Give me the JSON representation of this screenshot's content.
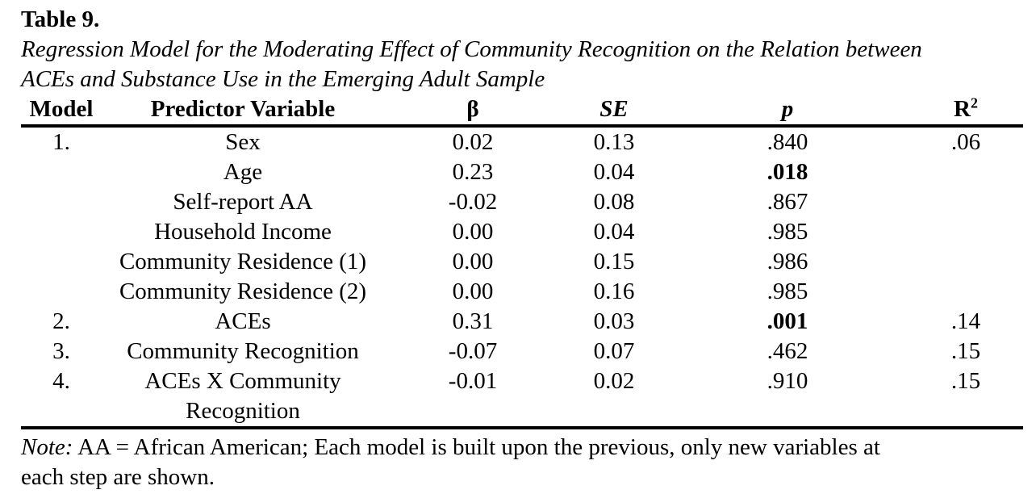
{
  "page": {
    "title": "Table 9.",
    "caption_lines": [
      "Regression Model for the Moderating Effect of Community Recognition on the Relation between",
      "ACEs and Substance Use in the Emerging Adult Sample"
    ]
  },
  "table": {
    "headers": [
      {
        "key": "model",
        "label": "Model"
      },
      {
        "key": "predictor",
        "label": "Predictor Variable"
      },
      {
        "key": "beta",
        "label": "β"
      },
      {
        "key": "se",
        "label": "SE"
      },
      {
        "key": "p",
        "label": "p"
      },
      {
        "key": "r2",
        "label": "R²"
      }
    ],
    "rows": [
      {
        "model": "1.",
        "predictor": "Sex",
        "beta": "0.02",
        "se": "0.13",
        "p": ".840",
        "pBold": false,
        "r2": ".06"
      },
      {
        "model": "",
        "predictor": "Age",
        "beta": "0.23",
        "se": "0.04",
        "p": ".018",
        "pBold": true,
        "r2": ""
      },
      {
        "model": "",
        "predictor": "Self-report AA",
        "beta": "-0.02",
        "se": "0.08",
        "p": ".867",
        "pBold": false,
        "r2": ""
      },
      {
        "model": "",
        "predictor": "Household Income",
        "beta": "0.00",
        "se": "0.04",
        "p": ".985",
        "pBold": false,
        "r2": ""
      },
      {
        "model": "",
        "predictor": "Community Residence (1)",
        "beta": "0.00",
        "se": "0.15",
        "p": ".986",
        "pBold": false,
        "r2": ""
      },
      {
        "model": "",
        "predictor": "Community Residence (2)",
        "beta": "0.00",
        "se": "0.16",
        "p": ".985",
        "pBold": false,
        "r2": ""
      },
      {
        "model": "2.",
        "predictor": "ACEs",
        "beta": "0.31",
        "se": "0.03",
        "p": ".001",
        "pBold": true,
        "r2": ".14"
      },
      {
        "model": "3.",
        "predictor": "Community Recognition",
        "beta": "-0.07",
        "se": "0.07",
        "p": ".462",
        "pBold": false,
        "r2": ".15"
      },
      {
        "model": "4.",
        "predictor": "ACEs X Community",
        "predictor2": "Recognition",
        "beta": "-0.01",
        "se": "0.02",
        "p": ".910",
        "pBold": false,
        "r2": ".15"
      }
    ]
  },
  "note": {
    "prefix": "Note:",
    "line1": " AA = African American; Each model is built upon the previous, only new variables at",
    "line2": "each step are shown."
  }
}
